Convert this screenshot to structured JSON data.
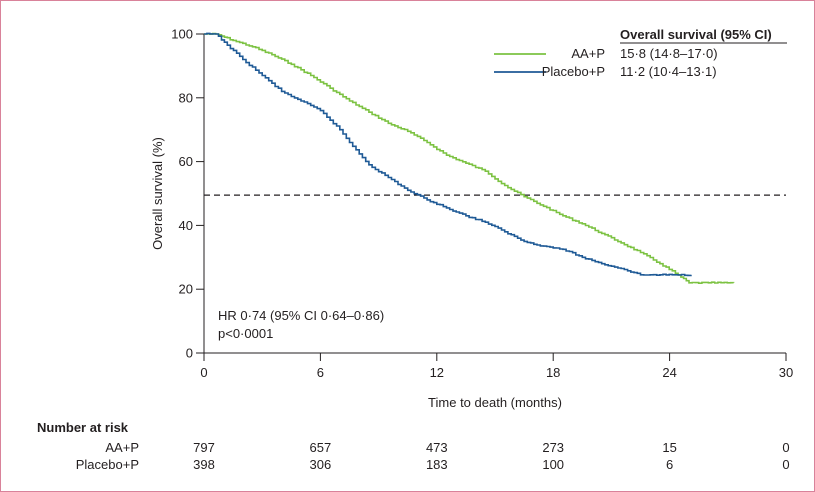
{
  "chart_data": {
    "type": "line",
    "subtype": "kaplan-meier",
    "xlabel": "Time to death (months)",
    "ylabel": "Overall survival (%)",
    "xlim": [
      0,
      30
    ],
    "ylim": [
      0,
      100
    ],
    "xticks": [
      0,
      6,
      12,
      18,
      24,
      30
    ],
    "yticks": [
      0,
      20,
      40,
      60,
      80,
      100
    ],
    "xtick_labels": [
      "0",
      "6",
      "12",
      "18",
      "24",
      "30"
    ],
    "ytick_labels": [
      "0",
      "20",
      "40",
      "60",
      "80",
      "100"
    ],
    "grid": false,
    "reference_line": {
      "y": 49.5,
      "style": "dashed"
    },
    "legend": {
      "title": "Overall survival (95% CI)",
      "placement": "top-right",
      "entries": [
        {
          "name": "AA+P",
          "value": "15·8 (14·8–17·0)",
          "color": "#7cc242"
        },
        {
          "name": "Placebo+P",
          "value": "11·2 (10·4–13·1)",
          "color": "#1f5a96"
        }
      ]
    },
    "annotations": [
      "HR 0·74 (95% CI 0·64–0·86)",
      "p<0·0001"
    ],
    "series": [
      {
        "name": "AA+P",
        "color": "#7cc242",
        "x": [
          0,
          0.6,
          1.5,
          2.5,
          3.5,
          4.5,
          5.5,
          6.5,
          7.5,
          8.5,
          9.5,
          10.5,
          11.5,
          12.5,
          13.5,
          14.5,
          15.5,
          16.5,
          17.5,
          18.5,
          19.5,
          20.5,
          21.5,
          22.5,
          23.5,
          24.3,
          25,
          26,
          27.3
        ],
        "y": [
          100,
          100,
          98,
          96,
          93.5,
          90.5,
          87,
          83,
          79,
          75.5,
          72,
          69.5,
          66,
          62,
          59.5,
          57,
          52.5,
          49,
          46,
          43,
          40.5,
          37.5,
          34.5,
          31.5,
          28,
          25,
          22,
          22,
          22
        ]
      },
      {
        "name": "Placebo+P",
        "color": "#1f5a96",
        "x": [
          0,
          0.6,
          1.2,
          2,
          3,
          4,
          5,
          6,
          7,
          7.5,
          8.5,
          9.5,
          10.5,
          11.5,
          12.5,
          13.5,
          14.5,
          15.5,
          16.5,
          17.5,
          18.5,
          19.5,
          20.5,
          21.5,
          22.5,
          23.5,
          24.3,
          25.1
        ],
        "y": [
          100,
          100,
          96.5,
          92,
          87,
          82,
          79,
          76,
          70,
          66,
          59,
          55,
          51,
          48,
          45.5,
          43,
          41,
          38,
          35,
          33.5,
          32.5,
          30,
          28,
          26.5,
          24.5,
          24.5,
          24.5,
          24.5
        ]
      }
    ],
    "risk_table": {
      "title": "Number at risk",
      "times": [
        0,
        6,
        12,
        18,
        24,
        30
      ],
      "rows": [
        {
          "label": "AA+P",
          "values": [
            797,
            657,
            473,
            273,
            15,
            0
          ]
        },
        {
          "label": "Placebo+P",
          "values": [
            398,
            306,
            183,
            100,
            6,
            0
          ]
        }
      ]
    }
  }
}
